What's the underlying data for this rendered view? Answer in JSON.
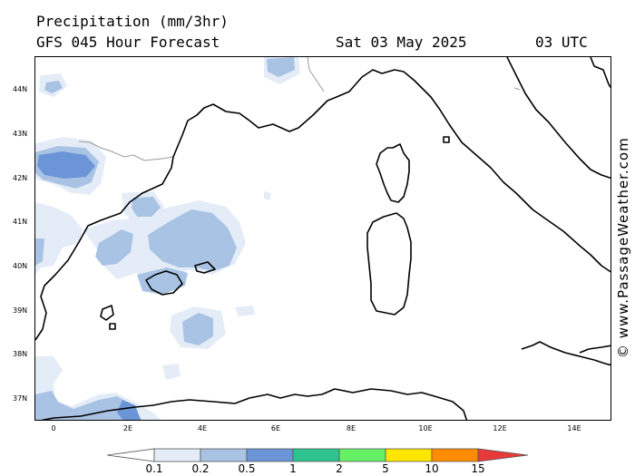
{
  "header": {
    "title": "Precipitation (mm/3hr)",
    "model": "GFS 045 Hour Forecast",
    "date": "Sat 03 May 2025",
    "time": "03 UTC"
  },
  "credit": "© www.PassageWeather.com",
  "axes": {
    "lat_labels": [
      "44N",
      "43N",
      "42N",
      "41N",
      "40N",
      "39N",
      "38N",
      "37N"
    ],
    "lon_labels": [
      "0",
      "2E",
      "4E",
      "6E",
      "8E",
      "10E",
      "12E",
      "14E"
    ]
  },
  "legend": {
    "labels": [
      "0.1",
      "0.2",
      "0.5",
      "1",
      "2",
      "5",
      "10",
      "15"
    ],
    "colors": [
      "#ffffff",
      "#e4ecf7",
      "#a9c3e4",
      "#6b95d6",
      "#2ec38f",
      "#66f066",
      "#ffe600",
      "#ff8c00",
      "#e83a3a"
    ]
  },
  "colors": {
    "precip_light": "#e4ecf7",
    "precip_mid": "#a9c3e4",
    "precip_heavy": "#6b95d6"
  }
}
